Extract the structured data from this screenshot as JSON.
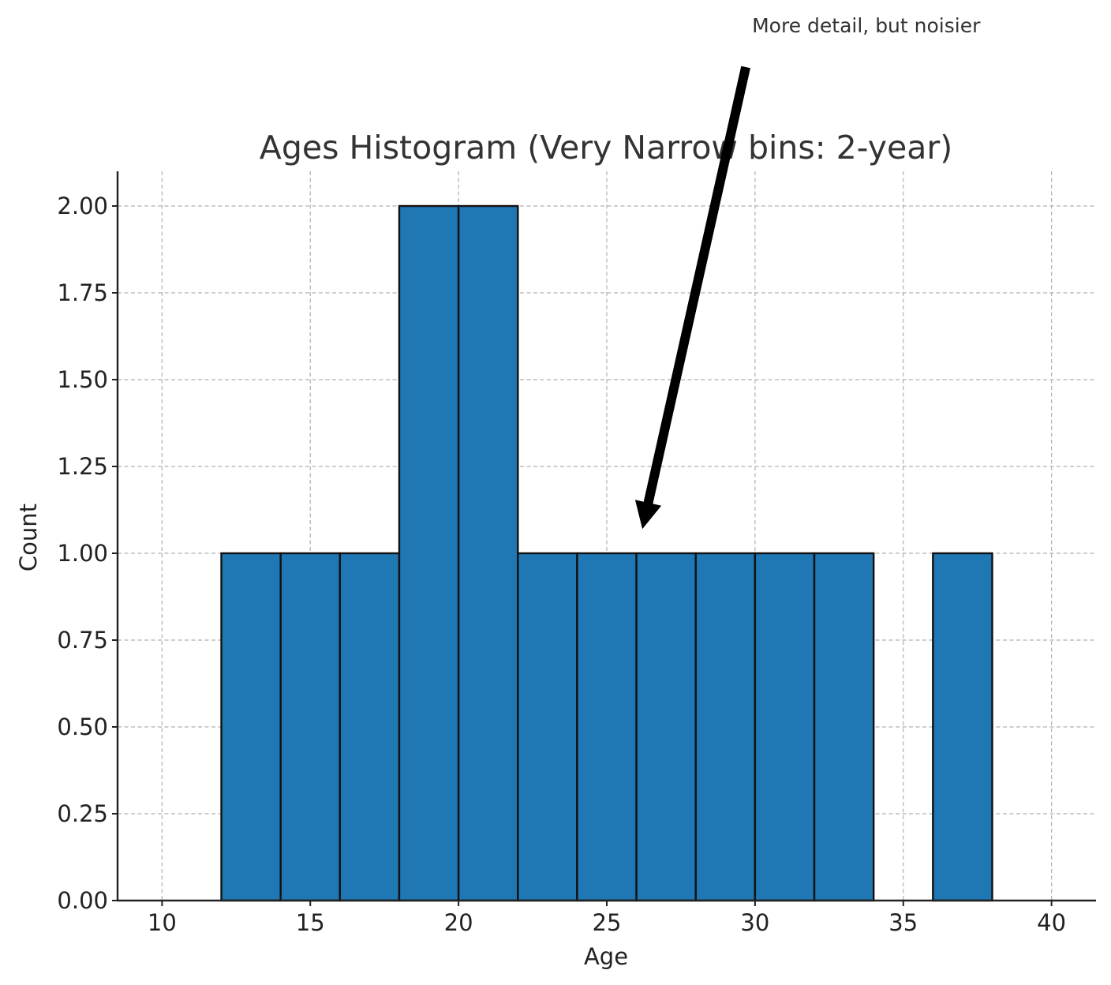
{
  "chart_data": {
    "type": "histogram",
    "title": "Ages Histogram (Very Narrow bins: 2-year)",
    "xlabel": "Age",
    "ylabel": "Count",
    "xlim": [
      8.5,
      41.5
    ],
    "ylim": [
      0,
      2.1
    ],
    "x_ticks": [
      10,
      15,
      20,
      25,
      30,
      35,
      40
    ],
    "y_ticks": [
      0,
      0.25,
      0.5,
      0.75,
      1.0,
      1.25,
      1.5,
      1.75,
      2.0
    ],
    "y_tick_labels": [
      "0.00",
      "0.25",
      "0.50",
      "0.75",
      "1.00",
      "1.25",
      "1.50",
      "1.75",
      "2.00"
    ],
    "grid": true,
    "bar_color": "#1f77b4",
    "edge_color": "#111111",
    "bins": [
      {
        "start": 12,
        "end": 14,
        "count": 1
      },
      {
        "start": 14,
        "end": 16,
        "count": 1
      },
      {
        "start": 16,
        "end": 18,
        "count": 1
      },
      {
        "start": 18,
        "end": 20,
        "count": 2
      },
      {
        "start": 20,
        "end": 22,
        "count": 2
      },
      {
        "start": 22,
        "end": 24,
        "count": 1
      },
      {
        "start": 24,
        "end": 26,
        "count": 1
      },
      {
        "start": 26,
        "end": 28,
        "count": 1
      },
      {
        "start": 28,
        "end": 30,
        "count": 1
      },
      {
        "start": 30,
        "end": 32,
        "count": 1
      },
      {
        "start": 32,
        "end": 34,
        "count": 1
      },
      {
        "start": 34,
        "end": 36,
        "count": 0
      },
      {
        "start": 36,
        "end": 38,
        "count": 1
      }
    ],
    "annotation": {
      "text": "More detail, but noisier",
      "point": [
        26.2,
        1.07
      ],
      "text_position": [
        29.9,
        2.34
      ]
    }
  }
}
